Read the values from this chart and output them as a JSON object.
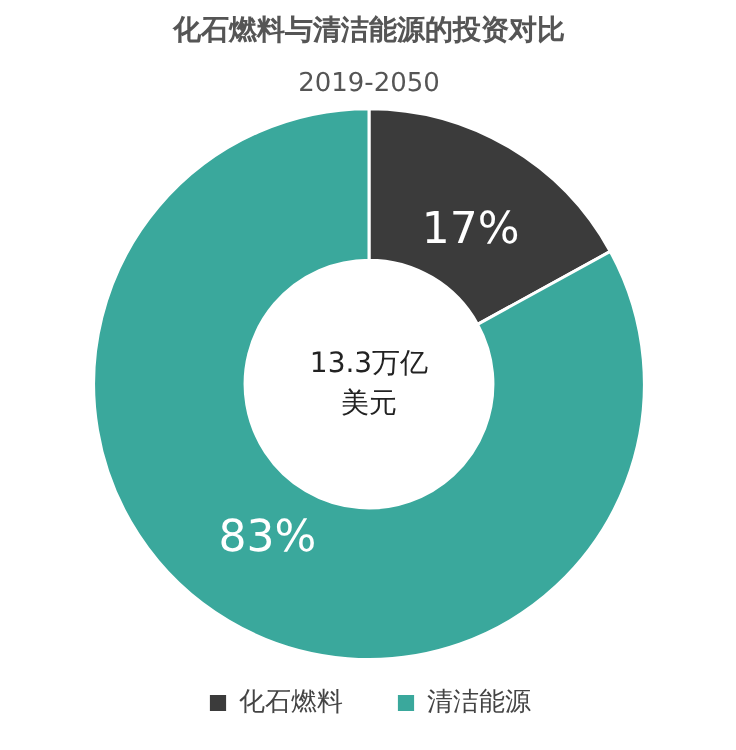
{
  "chart_data": {
    "type": "donut",
    "title": "化石燃料与清洁能源的投资对比",
    "subtitle": "2019-2050",
    "categories": [
      "化石燃料",
      "清洁能源"
    ],
    "values": [
      17,
      83
    ],
    "colors": [
      "#3b3b3b",
      "#3aa89c"
    ],
    "value_labels": [
      "17%",
      "83%"
    ],
    "annotations": [
      "13.3万亿",
      "美元"
    ],
    "legend": "bottom"
  }
}
